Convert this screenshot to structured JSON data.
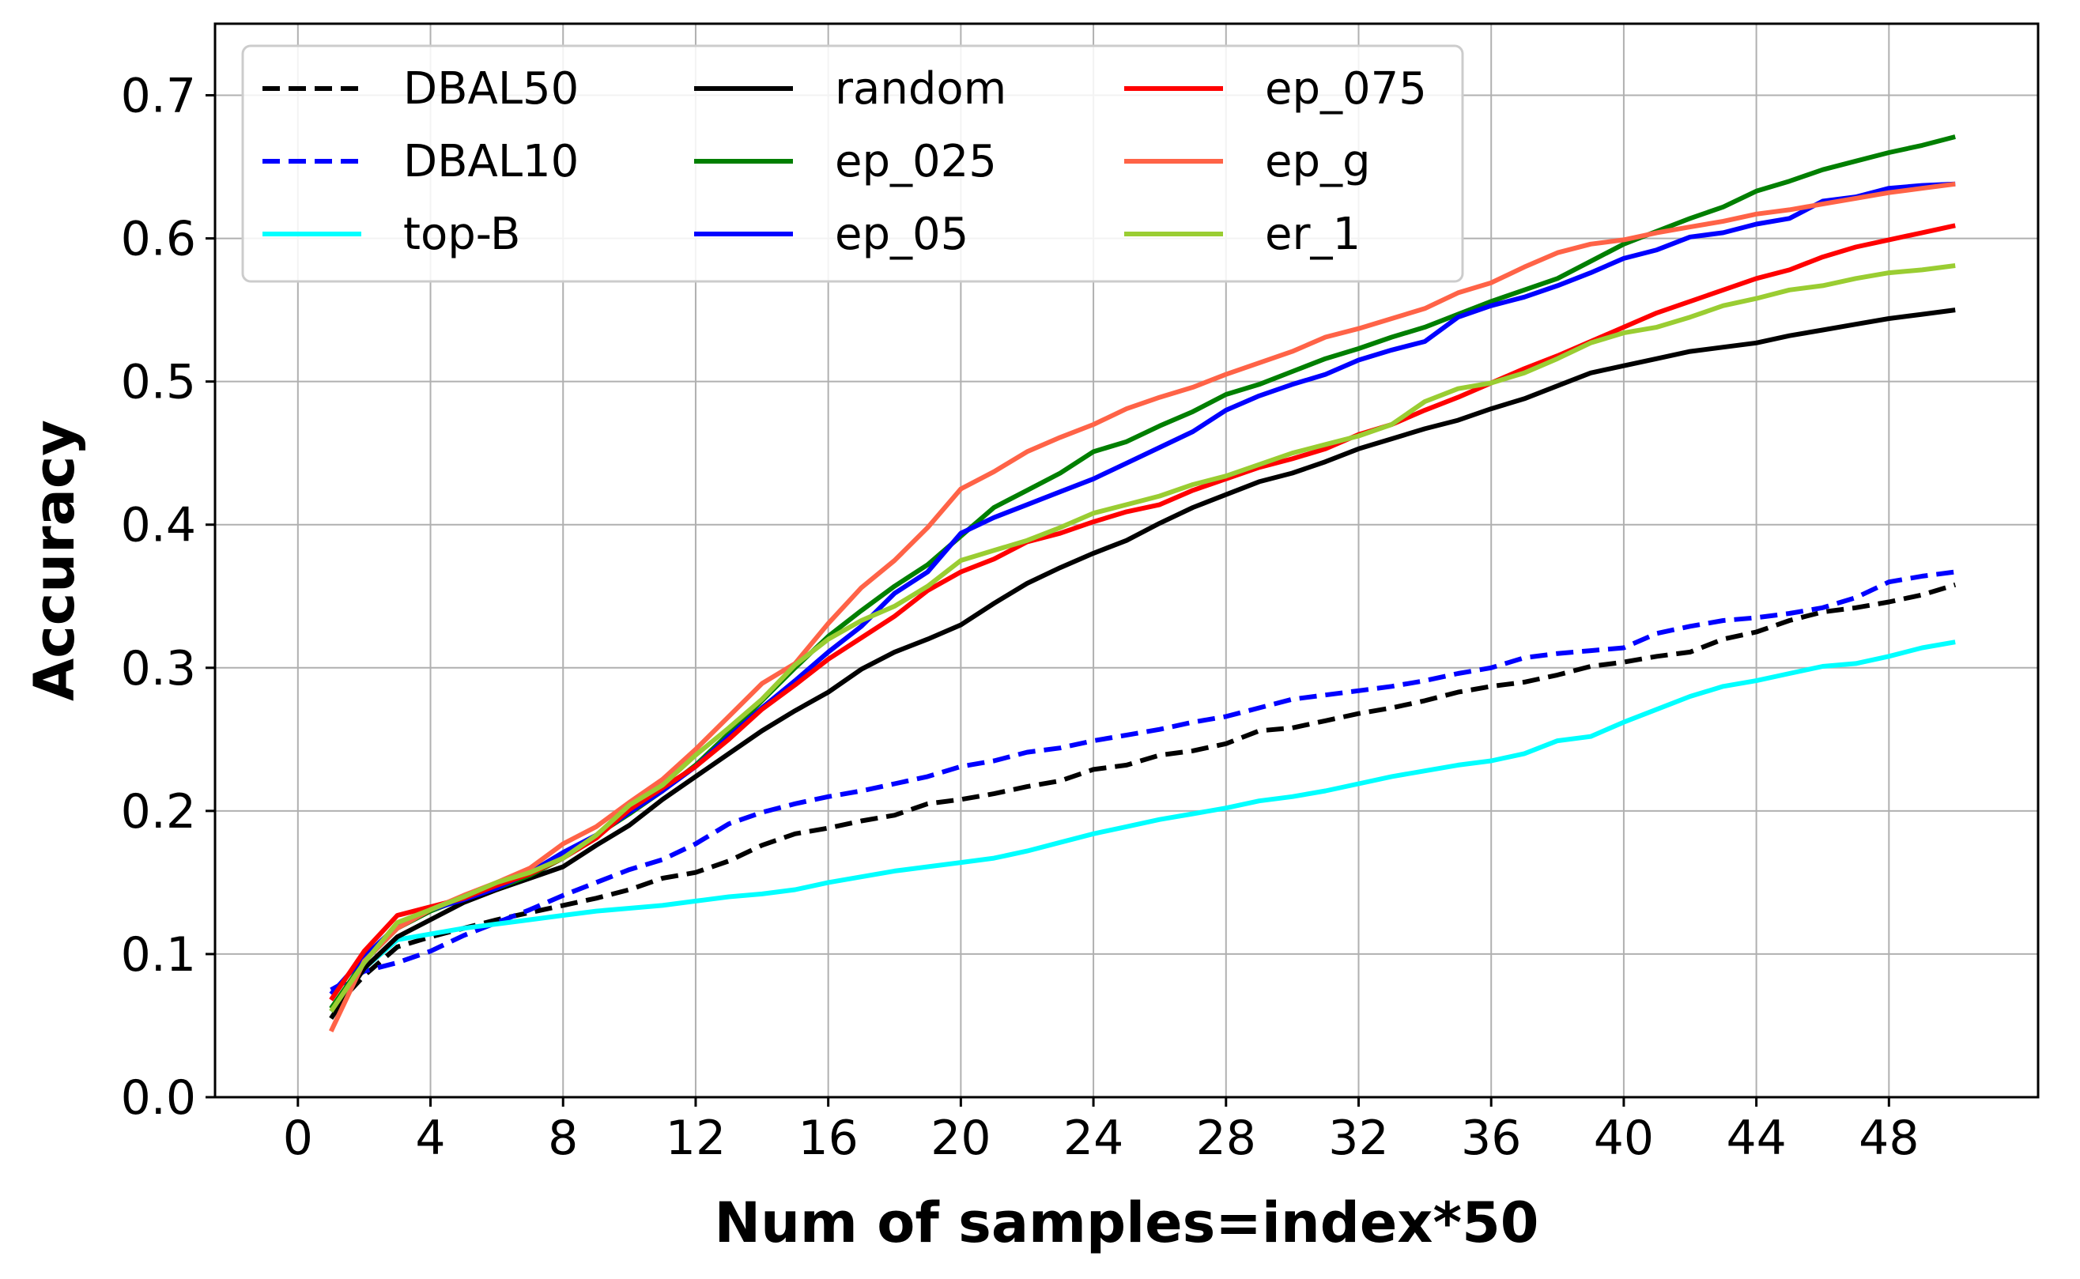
{
  "chart_data": {
    "type": "line",
    "title": "",
    "xlabel": "Num of samples=index*50",
    "ylabel": "Accuracy",
    "xlim": [
      -2.5,
      52.5
    ],
    "ylim": [
      0.0,
      0.75
    ],
    "xticks": [
      0,
      4,
      8,
      12,
      16,
      20,
      24,
      28,
      32,
      36,
      40,
      44,
      48
    ],
    "yticks": [
      0.0,
      0.1,
      0.2,
      0.3,
      0.4,
      0.5,
      0.6,
      0.7
    ],
    "ytick_labels": [
      "0.0",
      "0.1",
      "0.2",
      "0.3",
      "0.4",
      "0.5",
      "0.6",
      "0.7"
    ],
    "grid": true,
    "legend_position": "top-left",
    "legend_columns": 3,
    "x": [
      1,
      2,
      3,
      4,
      5,
      6,
      7,
      8,
      9,
      10,
      11,
      12,
      13,
      14,
      15,
      16,
      17,
      18,
      19,
      20,
      21,
      22,
      23,
      24,
      25,
      26,
      27,
      28,
      29,
      30,
      31,
      32,
      33,
      34,
      35,
      36,
      37,
      38,
      39,
      40,
      41,
      42,
      43,
      44,
      45,
      46,
      47,
      48,
      49,
      50
    ],
    "series": [
      {
        "name": "DBAL50",
        "color": "#000000",
        "dashed": true,
        "values": [
          0.06,
          0.085,
          0.105,
          0.112,
          0.118,
          0.124,
          0.129,
          0.134,
          0.139,
          0.145,
          0.153,
          0.157,
          0.165,
          0.176,
          0.184,
          0.188,
          0.193,
          0.197,
          0.205,
          0.208,
          0.212,
          0.217,
          0.221,
          0.229,
          0.232,
          0.239,
          0.242,
          0.247,
          0.256,
          0.258,
          0.263,
          0.268,
          0.272,
          0.277,
          0.283,
          0.287,
          0.29,
          0.295,
          0.301,
          0.304,
          0.308,
          0.311,
          0.32,
          0.325,
          0.333,
          0.339,
          0.342,
          0.346,
          0.351,
          0.358
        ]
      },
      {
        "name": "DBAL10",
        "color": "#0000ff",
        "dashed": true,
        "values": [
          0.075,
          0.088,
          0.094,
          0.102,
          0.113,
          0.122,
          0.131,
          0.141,
          0.15,
          0.159,
          0.166,
          0.177,
          0.191,
          0.199,
          0.205,
          0.21,
          0.214,
          0.219,
          0.224,
          0.231,
          0.235,
          0.241,
          0.244,
          0.249,
          0.253,
          0.257,
          0.262,
          0.266,
          0.272,
          0.278,
          0.281,
          0.284,
          0.287,
          0.291,
          0.296,
          0.3,
          0.307,
          0.31,
          0.312,
          0.314,
          0.324,
          0.329,
          0.333,
          0.335,
          0.338,
          0.342,
          0.349,
          0.36,
          0.364,
          0.367
        ]
      },
      {
        "name": "top-B",
        "color": "#00ffff",
        "dashed": false,
        "values": [
          0.06,
          0.09,
          0.11,
          0.114,
          0.118,
          0.121,
          0.124,
          0.127,
          0.13,
          0.132,
          0.134,
          0.137,
          0.14,
          0.142,
          0.145,
          0.15,
          0.154,
          0.158,
          0.161,
          0.164,
          0.167,
          0.172,
          0.178,
          0.184,
          0.189,
          0.194,
          0.198,
          0.202,
          0.207,
          0.21,
          0.214,
          0.219,
          0.224,
          0.228,
          0.232,
          0.235,
          0.24,
          0.249,
          0.252,
          0.262,
          0.271,
          0.28,
          0.287,
          0.291,
          0.296,
          0.301,
          0.303,
          0.308,
          0.314,
          0.318
        ]
      },
      {
        "name": "random",
        "color": "#000000",
        "dashed": false,
        "values": [
          0.055,
          0.09,
          0.112,
          0.124,
          0.136,
          0.145,
          0.153,
          0.161,
          0.176,
          0.19,
          0.208,
          0.224,
          0.24,
          0.256,
          0.27,
          0.283,
          0.299,
          0.311,
          0.32,
          0.33,
          0.345,
          0.359,
          0.37,
          0.38,
          0.389,
          0.401,
          0.412,
          0.421,
          0.43,
          0.436,
          0.444,
          0.453,
          0.46,
          0.467,
          0.473,
          0.481,
          0.488,
          0.497,
          0.506,
          0.511,
          0.516,
          0.521,
          0.524,
          0.527,
          0.532,
          0.536,
          0.54,
          0.544,
          0.547,
          0.55
        ]
      },
      {
        "name": "ep_025",
        "color": "#007f00",
        "dashed": false,
        "values": [
          0.062,
          0.095,
          0.118,
          0.13,
          0.139,
          0.146,
          0.155,
          0.167,
          0.183,
          0.198,
          0.214,
          0.232,
          0.254,
          0.277,
          0.3,
          0.322,
          0.34,
          0.357,
          0.372,
          0.392,
          0.412,
          0.424,
          0.436,
          0.451,
          0.458,
          0.469,
          0.479,
          0.491,
          0.498,
          0.507,
          0.516,
          0.523,
          0.531,
          0.538,
          0.547,
          0.556,
          0.564,
          0.572,
          0.584,
          0.596,
          0.605,
          0.614,
          0.622,
          0.633,
          0.64,
          0.648,
          0.654,
          0.66,
          0.665,
          0.671
        ]
      },
      {
        "name": "ep_05",
        "color": "#0000ff",
        "dashed": false,
        "values": [
          0.072,
          0.098,
          0.12,
          0.131,
          0.138,
          0.146,
          0.157,
          0.171,
          0.183,
          0.199,
          0.214,
          0.231,
          0.252,
          0.272,
          0.291,
          0.311,
          0.329,
          0.352,
          0.367,
          0.394,
          0.405,
          0.414,
          0.423,
          0.432,
          0.443,
          0.454,
          0.465,
          0.48,
          0.49,
          0.498,
          0.505,
          0.515,
          0.522,
          0.528,
          0.545,
          0.553,
          0.559,
          0.567,
          0.576,
          0.586,
          0.592,
          0.601,
          0.604,
          0.61,
          0.614,
          0.626,
          0.629,
          0.635,
          0.637,
          0.638
        ]
      },
      {
        "name": "ep_075",
        "color": "#ff0000",
        "dashed": false,
        "values": [
          0.068,
          0.102,
          0.127,
          0.133,
          0.139,
          0.148,
          0.156,
          0.167,
          0.181,
          0.201,
          0.216,
          0.231,
          0.25,
          0.271,
          0.288,
          0.306,
          0.321,
          0.336,
          0.354,
          0.367,
          0.376,
          0.388,
          0.394,
          0.402,
          0.409,
          0.414,
          0.424,
          0.432,
          0.44,
          0.446,
          0.453,
          0.463,
          0.47,
          0.48,
          0.489,
          0.499,
          0.509,
          0.518,
          0.528,
          0.538,
          0.548,
          0.556,
          0.564,
          0.572,
          0.578,
          0.587,
          0.594,
          0.599,
          0.604,
          0.609
        ]
      },
      {
        "name": "ep_g",
        "color": "#ff6347",
        "dashed": false,
        "values": [
          0.046,
          0.095,
          0.118,
          0.131,
          0.141,
          0.15,
          0.16,
          0.177,
          0.189,
          0.206,
          0.222,
          0.243,
          0.266,
          0.289,
          0.303,
          0.331,
          0.356,
          0.375,
          0.398,
          0.425,
          0.437,
          0.451,
          0.461,
          0.47,
          0.481,
          0.489,
          0.496,
          0.505,
          0.513,
          0.521,
          0.531,
          0.537,
          0.544,
          0.551,
          0.562,
          0.569,
          0.58,
          0.59,
          0.596,
          0.599,
          0.604,
          0.608,
          0.612,
          0.617,
          0.62,
          0.624,
          0.628,
          0.632,
          0.635,
          0.638
        ]
      },
      {
        "name": "er_1",
        "color": "#9acd32",
        "dashed": false,
        "values": [
          0.06,
          0.094,
          0.122,
          0.131,
          0.14,
          0.15,
          0.157,
          0.167,
          0.183,
          0.204,
          0.218,
          0.239,
          0.258,
          0.278,
          0.302,
          0.32,
          0.333,
          0.343,
          0.357,
          0.375,
          0.382,
          0.389,
          0.398,
          0.408,
          0.414,
          0.42,
          0.428,
          0.434,
          0.442,
          0.45,
          0.456,
          0.462,
          0.47,
          0.486,
          0.495,
          0.499,
          0.506,
          0.516,
          0.527,
          0.534,
          0.538,
          0.545,
          0.553,
          0.558,
          0.564,
          0.567,
          0.572,
          0.576,
          0.578,
          0.581
        ]
      }
    ]
  }
}
